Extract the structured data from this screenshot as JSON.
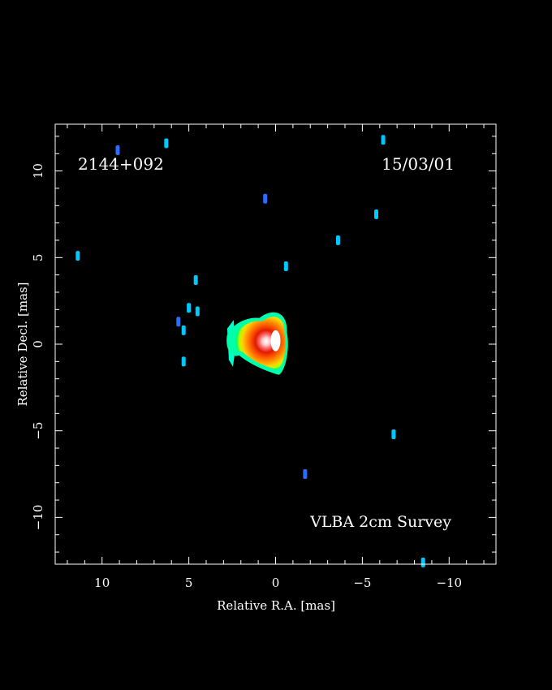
{
  "chart_data": {
    "type": "heatmap",
    "source_name": "2144+092",
    "date": "15/03/01",
    "survey": "VLBA 2cm Survey",
    "xlabel": "Relative R.A. [mas]",
    "ylabel": "Relative Decl. [mas]",
    "xlim": [
      12.7,
      -12.7
    ],
    "ylim": [
      -12.7,
      12.7
    ],
    "x_ticks": [
      10,
      5,
      0,
      -5,
      -10
    ],
    "y_ticks": [
      10,
      5,
      0,
      -5,
      -10
    ],
    "x_tick_labels": [
      "10",
      "5",
      "0",
      "−5",
      "−10"
    ],
    "y_tick_labels": [
      "10",
      "5",
      "0",
      "−5",
      "−10"
    ],
    "core": {
      "x": 0.0,
      "y": 0.2,
      "color_scale": [
        "#00ffcc",
        "#00ff55",
        "#b8ff00",
        "#ffd000",
        "#ff8800",
        "#ff3300",
        "#dd1100",
        "#ff7777",
        "#ffe0e0"
      ]
    },
    "jet_knots": [
      {
        "x": 2.6,
        "y": 0.3,
        "level": "green"
      },
      {
        "x": 2.8,
        "y": -0.5,
        "level": "cyan"
      }
    ],
    "spots": [
      {
        "x": 11.4,
        "y": 5.1,
        "color": "#00c8ff"
      },
      {
        "x": 9.1,
        "y": 11.2,
        "color": "#2a6cff"
      },
      {
        "x": 6.3,
        "y": 11.6,
        "color": "#00c8ff"
      },
      {
        "x": 4.6,
        "y": 3.7,
        "color": "#00c8ff"
      },
      {
        "x": 5.0,
        "y": 2.1,
        "color": "#00c8ff"
      },
      {
        "x": 4.5,
        "y": 1.9,
        "color": "#00c8ff"
      },
      {
        "x": 5.6,
        "y": 1.3,
        "color": "#2a6cff"
      },
      {
        "x": 5.3,
        "y": 0.8,
        "color": "#00c8ff"
      },
      {
        "x": 5.3,
        "y": -1.0,
        "color": "#00c8ff"
      },
      {
        "x": 0.6,
        "y": 8.4,
        "color": "#2a6cff"
      },
      {
        "x": -0.6,
        "y": 4.5,
        "color": "#00c8ff"
      },
      {
        "x": -3.6,
        "y": 6.0,
        "color": "#00c8ff"
      },
      {
        "x": -5.8,
        "y": 7.5,
        "color": "#00c8ff"
      },
      {
        "x": -6.2,
        "y": 11.8,
        "color": "#00c8ff"
      },
      {
        "x": -6.8,
        "y": -5.2,
        "color": "#00c8ff"
      },
      {
        "x": -1.7,
        "y": -7.5,
        "color": "#2a6cff"
      },
      {
        "x": -8.5,
        "y": -12.6,
        "color": "#00c8ff"
      }
    ]
  }
}
